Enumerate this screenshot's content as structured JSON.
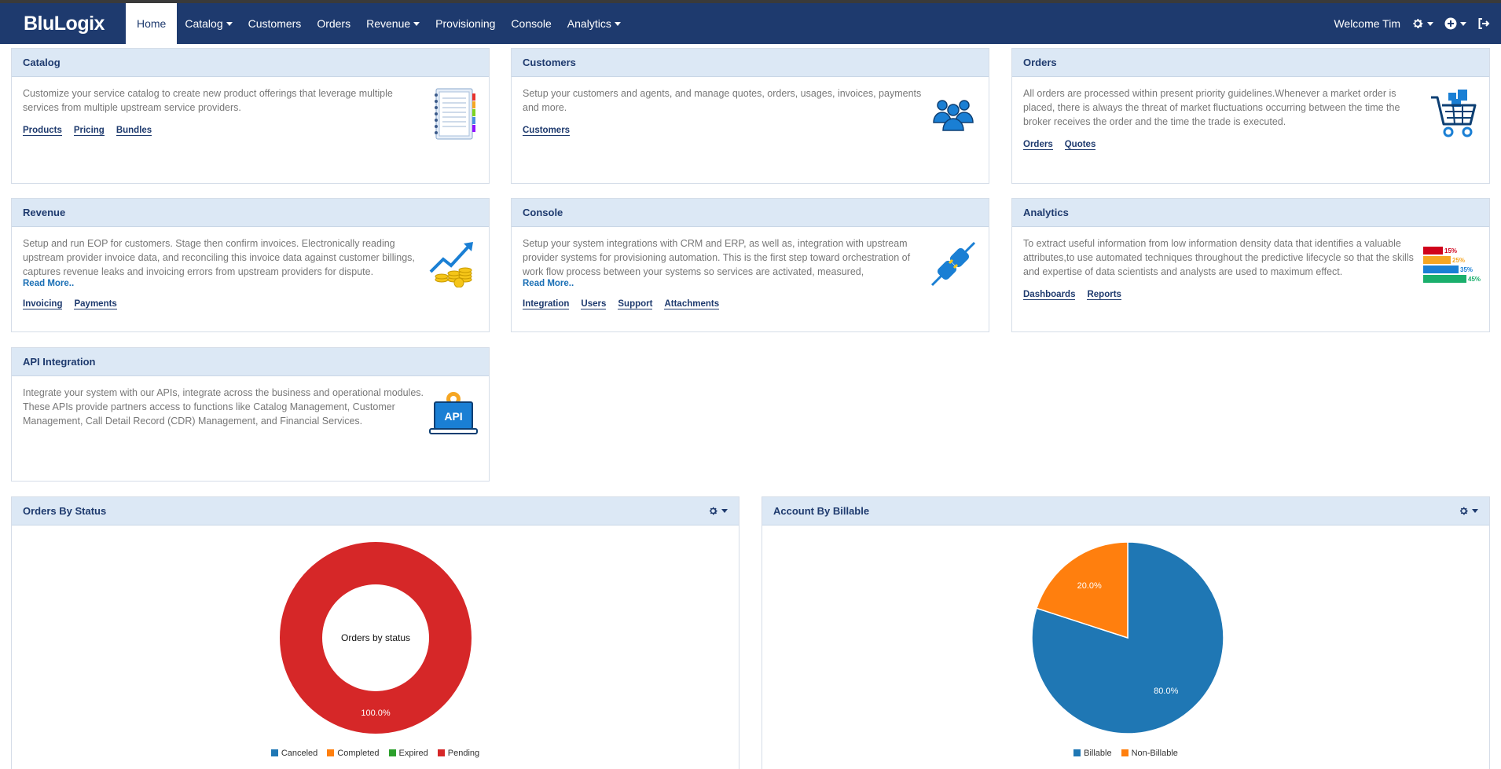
{
  "app": {
    "logo": "BluLogix"
  },
  "nav": {
    "items": [
      {
        "label": "Home",
        "active": true,
        "dropdown": false
      },
      {
        "label": "Catalog",
        "active": false,
        "dropdown": true
      },
      {
        "label": "Customers",
        "active": false,
        "dropdown": false
      },
      {
        "label": "Orders",
        "active": false,
        "dropdown": false
      },
      {
        "label": "Revenue",
        "active": false,
        "dropdown": true
      },
      {
        "label": "Provisioning",
        "active": false,
        "dropdown": false
      },
      {
        "label": "Console",
        "active": false,
        "dropdown": false
      },
      {
        "label": "Analytics",
        "active": false,
        "dropdown": true
      }
    ],
    "welcome": "Welcome Tim",
    "icons": [
      "gear-icon",
      "plus-circle-icon",
      "logout-icon"
    ]
  },
  "cards": {
    "catalog": {
      "title": "Catalog",
      "text": "Customize your service catalog to create new product offerings that leverage multiple services from multiple upstream service providers.",
      "links": [
        "Products",
        "Pricing",
        "Bundles"
      ],
      "icon": "notebook-icon"
    },
    "customers": {
      "title": "Customers",
      "text": "Setup your customers and agents, and manage quotes, orders, usages, invoices, payments and more.",
      "links": [
        "Customers"
      ],
      "icon": "users-icon"
    },
    "orders": {
      "title": "Orders",
      "text": "All orders are processed within present priority guidelines.Whenever a market order is placed, there is always the threat of market fluctuations occurring between the time the broker receives the order and the time the trade is executed.",
      "links": [
        "Orders",
        "Quotes"
      ],
      "icon": "cart-icon"
    },
    "revenue": {
      "title": "Revenue",
      "text": "Setup and run EOP for customers. Stage then confirm invoices. Electronically reading upstream provider invoice data, and reconciling this invoice data against customer billings, captures revenue leaks and invoicing errors from upstream providers for dispute.",
      "read_more": "Read More..",
      "links": [
        "Invoicing",
        "Payments"
      ],
      "icon": "revenue-growth-icon"
    },
    "console": {
      "title": "Console",
      "text": "Setup your system integrations with CRM and ERP, as well as, integration with upstream provider systems for provisioning automation. This is the first step toward orchestration of work flow process between your systems so services are activated, measured,",
      "read_more": "Read More..",
      "links": [
        "Integration",
        "Users",
        "Support",
        "Attachments"
      ],
      "icon": "plug-icon"
    },
    "analytics": {
      "title": "Analytics",
      "text": "To extract useful information from low information density data that identifies a valuable attributes,to use automated techniques throughout the predictive lifecycle so that the skills and expertise of data scientists and analysts are used to maximum effect.",
      "links": [
        "Dashboards",
        "Reports"
      ],
      "icon": "bar-stats-icon",
      "icon_bars": [
        {
          "label": "15%",
          "color": "#d0021b",
          "value": 15
        },
        {
          "label": "25%",
          "color": "#f5a623",
          "value": 25
        },
        {
          "label": "35%",
          "color": "#1a7fd4",
          "value": 35
        },
        {
          "label": "45%",
          "color": "#1aaf6c",
          "value": 45
        }
      ]
    },
    "api": {
      "title": "API Integration",
      "text": "Integrate your system with our APIs, integrate across the business and operational modules. These APIs provide partners access to functions like Catalog Management, Customer Management, Call Detail Record (CDR) Management, and Financial Services.",
      "icon": "api-laptop-icon",
      "icon_label": "API"
    }
  },
  "chart_data": [
    {
      "type": "pie",
      "variant": "donut",
      "panel_title": "Orders By Status",
      "center_label": "Orders by status",
      "categories": [
        "Canceled",
        "Completed",
        "Expired",
        "Pending"
      ],
      "values": [
        0,
        0,
        0,
        100
      ],
      "data_labels": [
        "",
        "",
        "",
        "100.0%"
      ],
      "colors": [
        "#1f77b4",
        "#ff7f0e",
        "#2ca02c",
        "#d62728"
      ],
      "legend": "bottom"
    },
    {
      "type": "pie",
      "panel_title": "Account By Billable",
      "categories": [
        "Billable",
        "Non-Billable"
      ],
      "values": [
        80,
        20
      ],
      "data_labels": [
        "80.0%",
        "20.0%"
      ],
      "colors": [
        "#1f77b4",
        "#ff7f0e"
      ],
      "legend": "bottom"
    }
  ]
}
